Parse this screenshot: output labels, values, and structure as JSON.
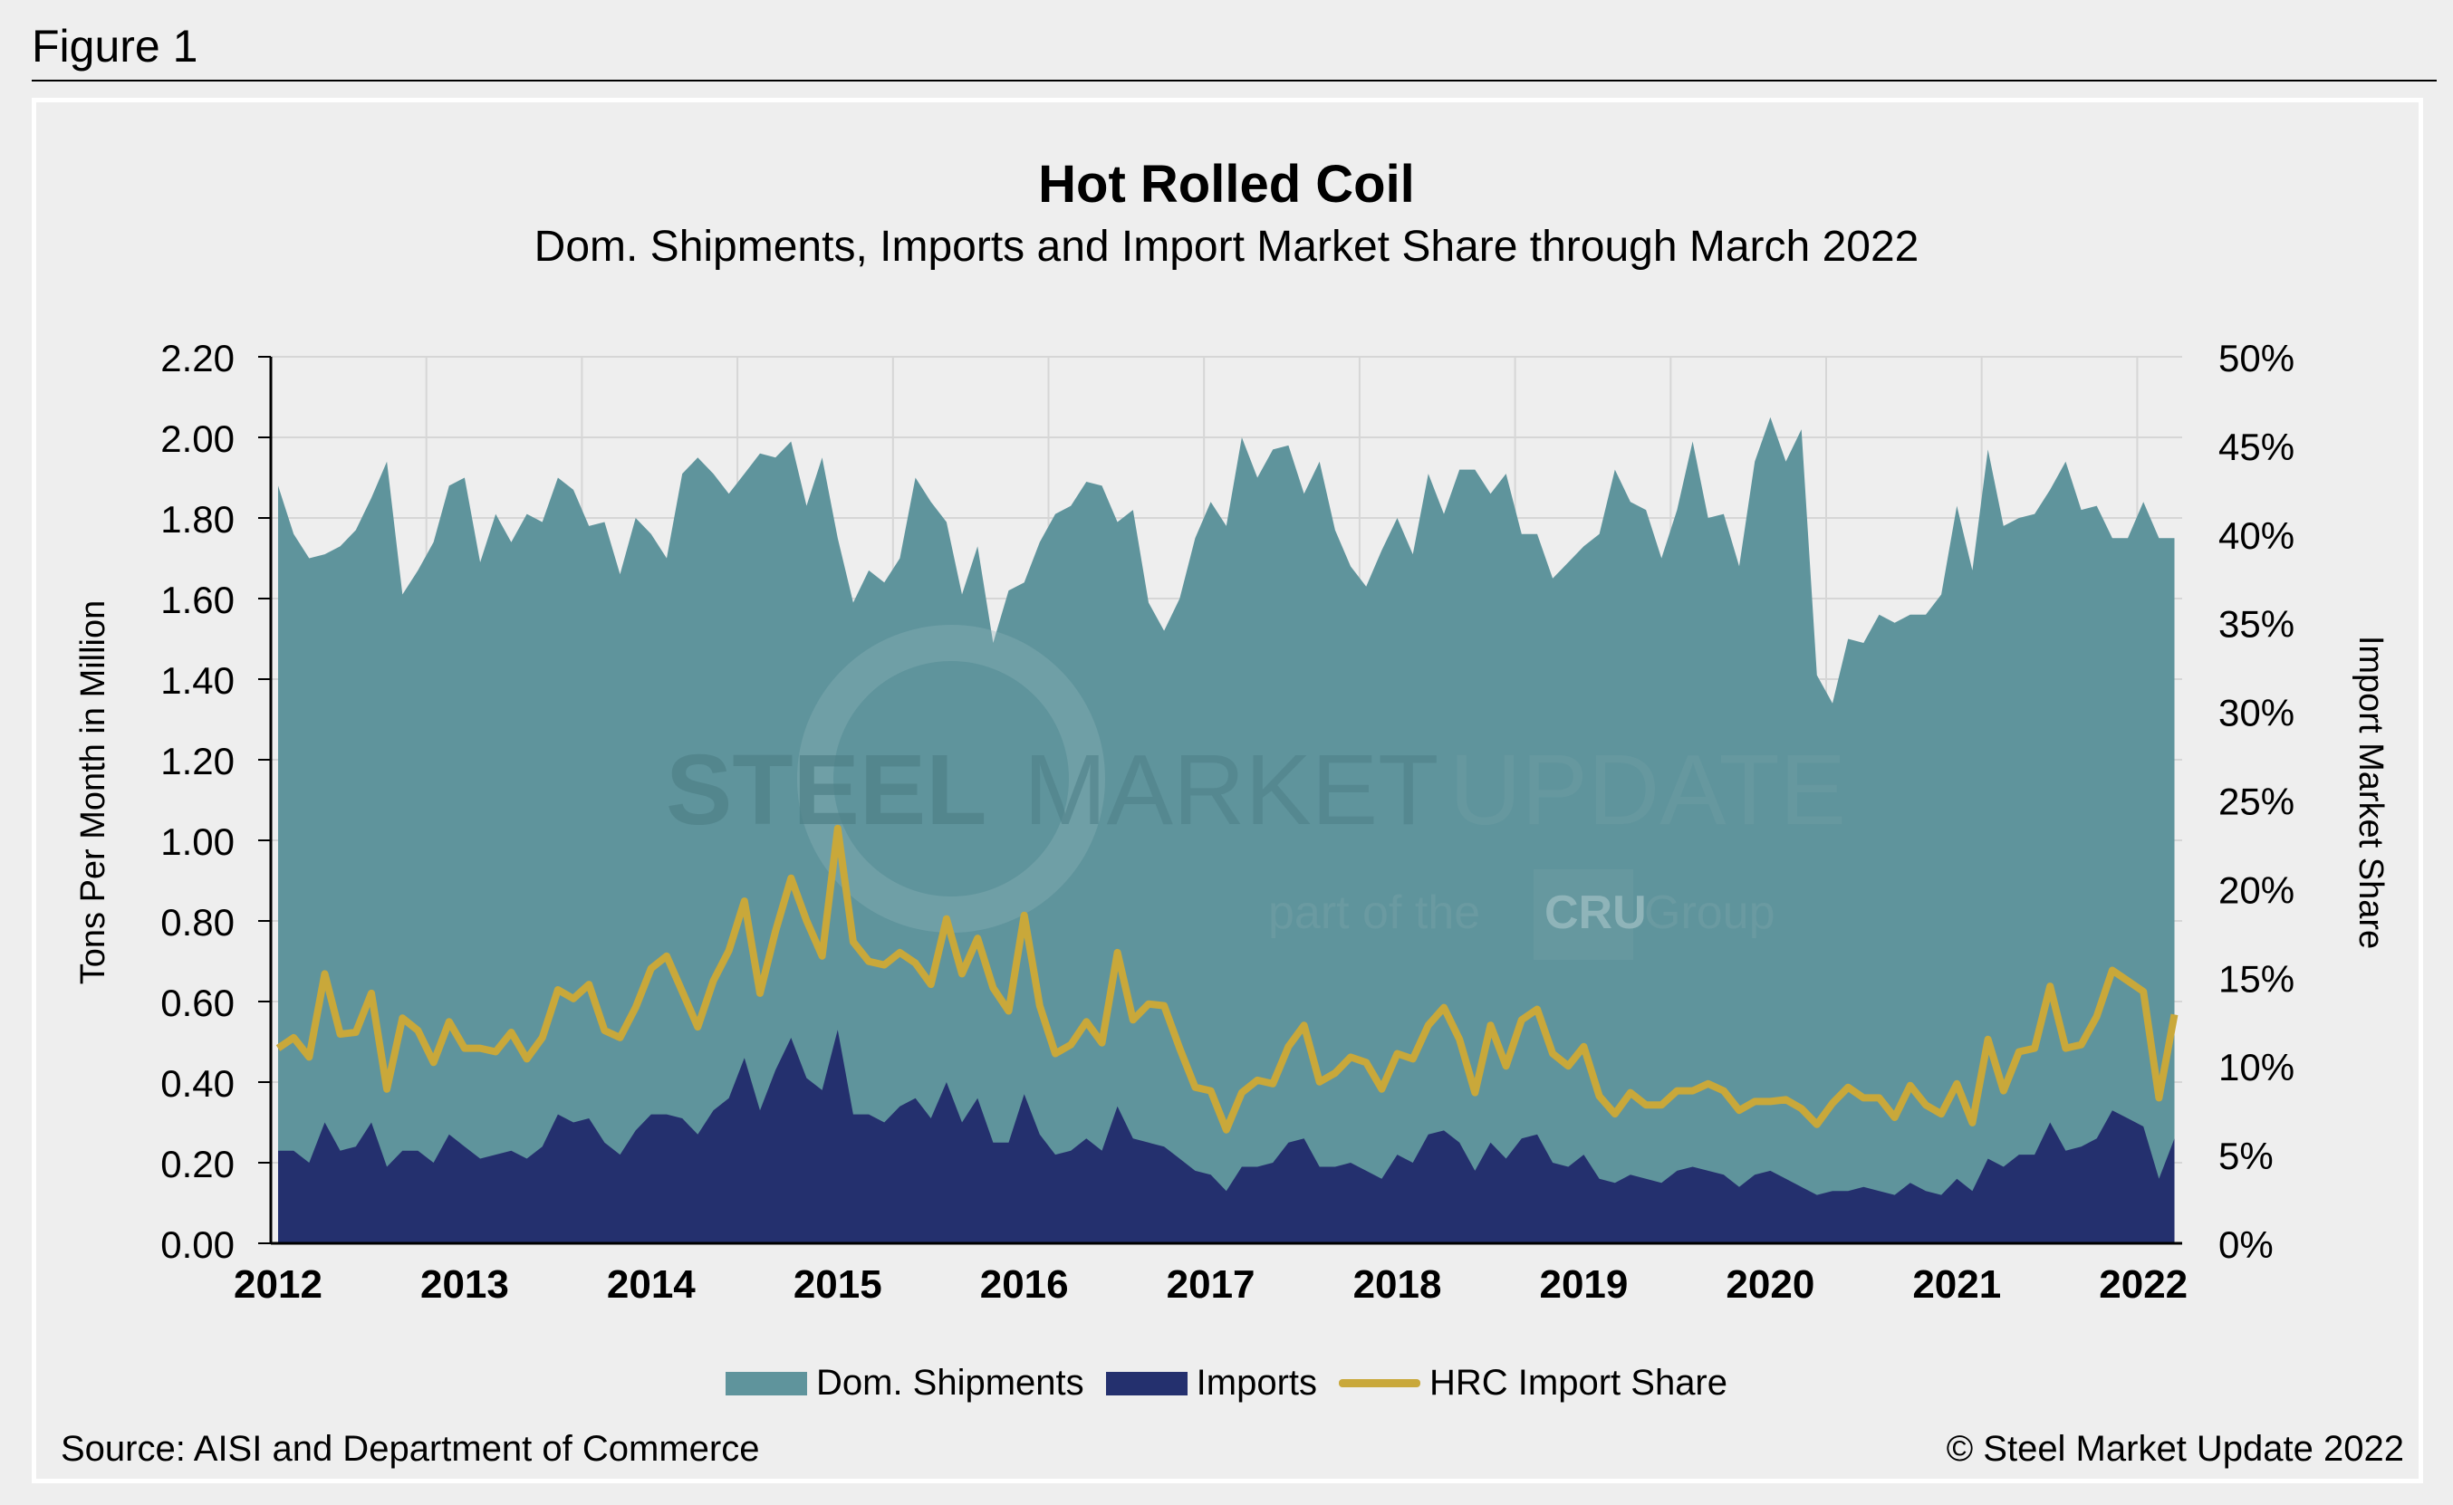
{
  "figure_label": "Figure 1",
  "source": "Source: AISI and Department of Commerce",
  "copyright": "© Steel Market Update 2022",
  "watermark": {
    "line1a": "STEEL",
    "line1b": "MARKET",
    "line1c": "UPDATE",
    "line2a": "part of the",
    "logo": "CRU",
    "line2b": "Group"
  },
  "chart_data": {
    "type": "area",
    "title": "Hot Rolled Coil",
    "subtitle": "Dom. Shipments, Imports and Import Market Share through March 2022",
    "ylabel": "Tons Per Month in Million",
    "y2label": "Import Market Share",
    "ylim": [
      0,
      2.2
    ],
    "y2lim": [
      0,
      50
    ],
    "yticks": [
      "0.00",
      "0.20",
      "0.40",
      "0.60",
      "0.80",
      "1.00",
      "1.20",
      "1.40",
      "1.60",
      "1.80",
      "2.00",
      "2.20"
    ],
    "y2ticks": [
      "0%",
      "5%",
      "10%",
      "15%",
      "20%",
      "25%",
      "30%",
      "35%",
      "40%",
      "45%",
      "50%"
    ],
    "xticks": [
      "2012",
      "2013",
      "2014",
      "2015",
      "2016",
      "2017",
      "2018",
      "2019",
      "2020",
      "2021",
      "2022"
    ],
    "x_range": [
      "2012-01",
      "2022-03"
    ],
    "grid": true,
    "legend_position": "bottom",
    "colors": {
      "dom": "#5f949c",
      "imports": "#24306e",
      "share": "#c9a83a"
    },
    "series": [
      {
        "name": "Dom. Shipments",
        "type": "area",
        "axis": "left",
        "values": [
          1.88,
          1.76,
          1.7,
          1.71,
          1.73,
          1.77,
          1.85,
          1.94,
          1.61,
          1.67,
          1.74,
          1.88,
          1.9,
          1.69,
          1.81,
          1.74,
          1.81,
          1.79,
          1.9,
          1.87,
          1.78,
          1.79,
          1.66,
          1.8,
          1.76,
          1.7,
          1.91,
          1.95,
          1.91,
          1.86,
          1.91,
          1.96,
          1.95,
          1.99,
          1.83,
          1.95,
          1.75,
          1.59,
          1.67,
          1.64,
          1.7,
          1.9,
          1.84,
          1.79,
          1.61,
          1.73,
          1.49,
          1.62,
          1.64,
          1.74,
          1.81,
          1.83,
          1.89,
          1.88,
          1.79,
          1.82,
          1.59,
          1.52,
          1.6,
          1.75,
          1.84,
          1.78,
          2.0,
          1.9,
          1.97,
          1.98,
          1.86,
          1.94,
          1.77,
          1.68,
          1.63,
          1.72,
          1.8,
          1.71,
          1.91,
          1.81,
          1.92,
          1.92,
          1.86,
          1.91,
          1.76,
          1.76,
          1.65,
          1.69,
          1.73,
          1.76,
          1.92,
          1.84,
          1.82,
          1.7,
          1.82,
          1.99,
          1.8,
          1.81,
          1.68,
          1.94,
          2.05,
          1.94,
          2.02,
          1.41,
          1.34,
          1.5,
          1.49,
          1.56,
          1.54,
          1.56,
          1.56,
          1.61,
          1.83,
          1.67,
          1.97,
          1.78,
          1.8,
          1.81,
          1.87,
          1.94,
          1.82,
          1.83,
          1.75,
          1.75,
          1.84,
          1.75,
          1.75
        ]
      },
      {
        "name": "Imports",
        "type": "area",
        "axis": "left",
        "values": [
          0.23,
          0.23,
          0.2,
          0.3,
          0.23,
          0.24,
          0.3,
          0.19,
          0.23,
          0.23,
          0.2,
          0.27,
          0.24,
          0.21,
          0.22,
          0.23,
          0.21,
          0.24,
          0.32,
          0.3,
          0.31,
          0.25,
          0.22,
          0.28,
          0.32,
          0.32,
          0.31,
          0.27,
          0.33,
          0.36,
          0.46,
          0.33,
          0.43,
          0.51,
          0.41,
          0.38,
          0.53,
          0.32,
          0.32,
          0.3,
          0.34,
          0.36,
          0.31,
          0.4,
          0.3,
          0.36,
          0.25,
          0.25,
          0.37,
          0.27,
          0.22,
          0.23,
          0.26,
          0.23,
          0.34,
          0.26,
          0.25,
          0.24,
          0.21,
          0.18,
          0.17,
          0.13,
          0.19,
          0.19,
          0.2,
          0.25,
          0.26,
          0.19,
          0.19,
          0.2,
          0.18,
          0.16,
          0.22,
          0.2,
          0.27,
          0.28,
          0.25,
          0.18,
          0.25,
          0.21,
          0.26,
          0.27,
          0.2,
          0.19,
          0.22,
          0.16,
          0.15,
          0.17,
          0.16,
          0.15,
          0.18,
          0.19,
          0.18,
          0.17,
          0.14,
          0.17,
          0.18,
          0.16,
          0.14,
          0.12,
          0.13,
          0.13,
          0.14,
          0.13,
          0.12,
          0.15,
          0.13,
          0.12,
          0.16,
          0.13,
          0.21,
          0.19,
          0.22,
          0.22,
          0.3,
          0.23,
          0.24,
          0.26,
          0.33,
          0.31,
          0.29,
          0.16,
          0.26
        ]
      },
      {
        "name": "HRC Import Share",
        "type": "line",
        "axis": "right",
        "values": [
          11,
          11.6,
          10.5,
          15.2,
          11.8,
          11.9,
          14.1,
          8.7,
          12.7,
          12,
          10.2,
          12.5,
          11,
          11,
          10.8,
          11.9,
          10.4,
          11.6,
          14.3,
          13.8,
          14.6,
          12,
          11.6,
          13.3,
          15.5,
          16.2,
          14.2,
          12.2,
          14.8,
          16.5,
          19.3,
          14.1,
          17.6,
          20.6,
          18.2,
          16.2,
          23.4,
          17,
          15.9,
          15.7,
          16.4,
          15.8,
          14.6,
          18.3,
          15.2,
          17.2,
          14.4,
          13.1,
          18.5,
          13.4,
          10.7,
          11.2,
          12.5,
          11.3,
          16.4,
          12.6,
          13.5,
          13.4,
          11,
          8.8,
          8.6,
          6.4,
          8.5,
          9.2,
          9,
          11.1,
          12.3,
          9.1,
          9.6,
          10.5,
          10.2,
          8.7,
          10.7,
          10.4,
          12.3,
          13.3,
          11.5,
          8.5,
          12.3,
          10,
          12.6,
          13.2,
          10.7,
          10,
          11.1,
          8.3,
          7.3,
          8.5,
          7.8,
          7.8,
          8.6,
          8.6,
          9,
          8.6,
          7.5,
          8,
          8,
          8.1,
          7.6,
          6.7,
          7.9,
          8.8,
          8.2,
          8.2,
          7.1,
          8.9,
          7.8,
          7.3,
          9,
          6.8,
          11.5,
          8.6,
          10.8,
          11,
          14.5,
          11,
          11.2,
          12.8,
          15.4,
          14.8,
          14.2,
          8.2,
          12.9
        ]
      }
    ]
  }
}
